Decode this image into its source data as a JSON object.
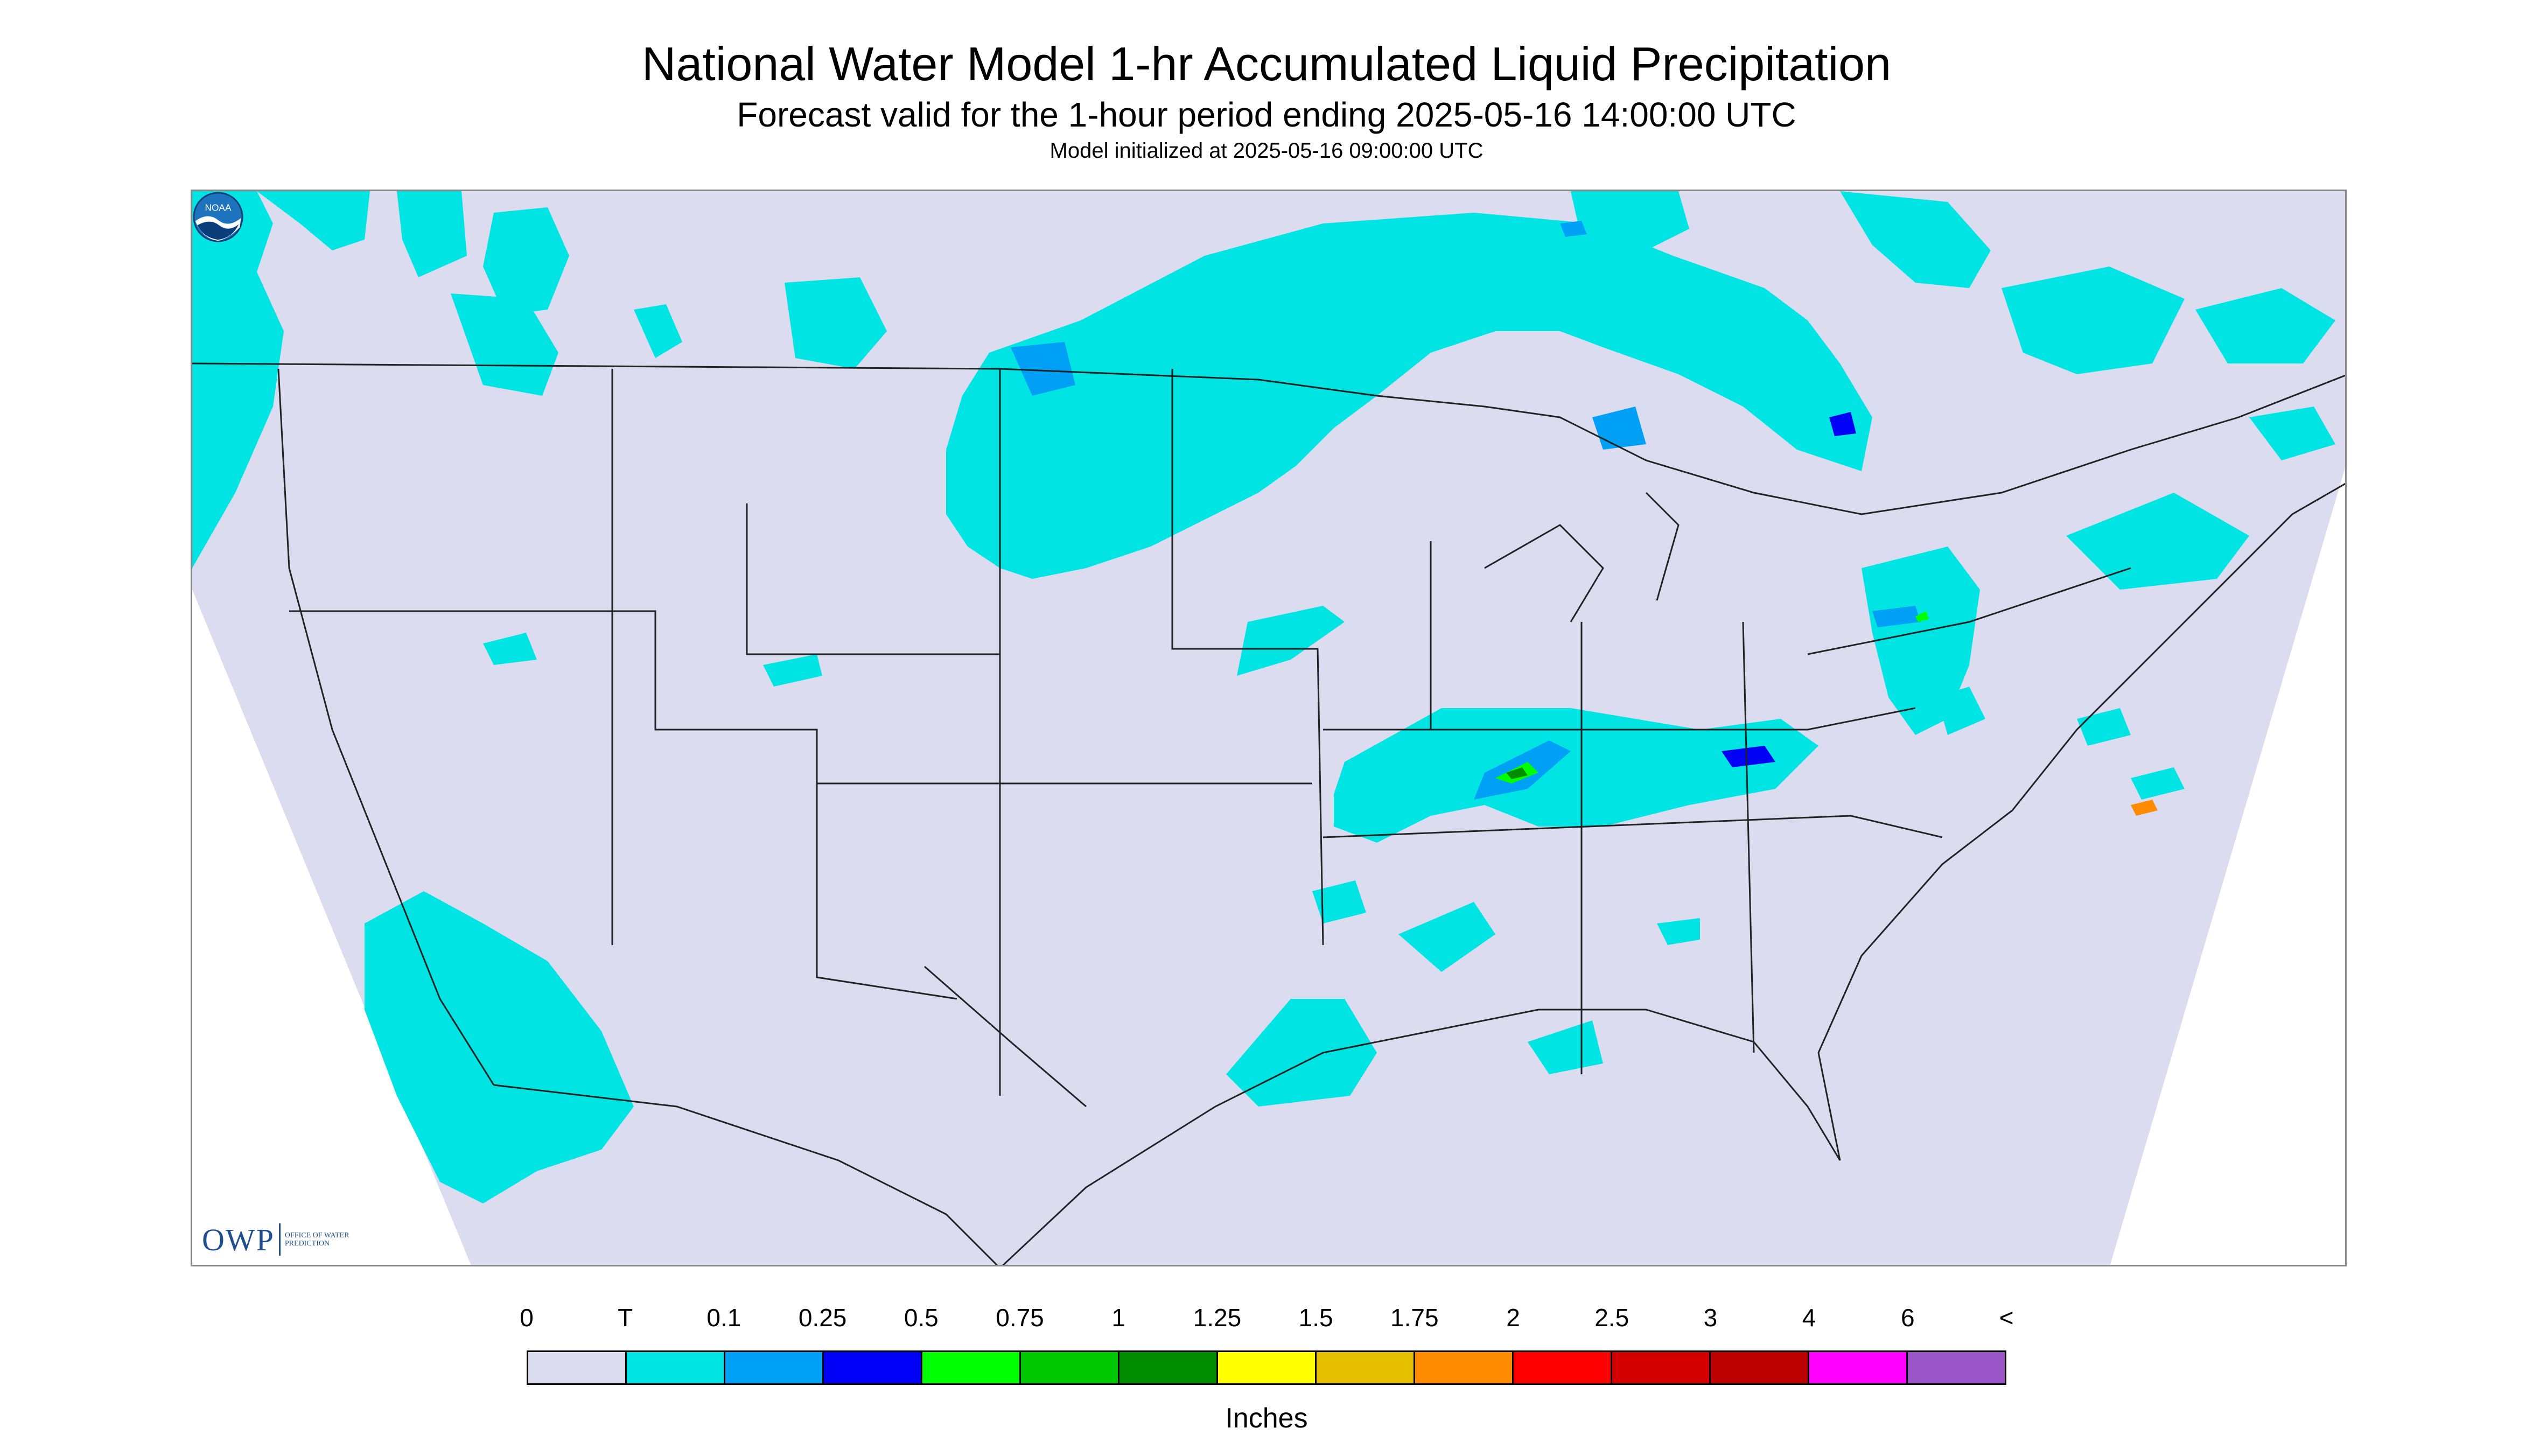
{
  "title": "National Water Model 1-hr Accumulated Liquid Precipitation",
  "subtitle": "Forecast valid for the 1-hour period ending 2025-05-16 14:00:00 UTC",
  "init_line": "Model initialized at 2025-05-16 09:00:00 UTC",
  "logos": {
    "owp_text": "OWP",
    "owp_subtext": "OFFICE OF WATER PREDICTION",
    "noaa_text": "NOAA"
  },
  "colors": {
    "no_data_region": "#ffffff",
    "domain_fill": "#dcdcf0",
    "boundary": "#222222"
  },
  "legend": {
    "labels": [
      "0",
      "T",
      "0.1",
      "0.25",
      "0.5",
      "0.75",
      "1",
      "1.25",
      "1.5",
      "1.75",
      "2",
      "2.5",
      "3",
      "4",
      "6",
      "<"
    ],
    "colors": [
      "#dcdcf0",
      "#00e4e4",
      "#00a0f6",
      "#0000f6",
      "#00ff00",
      "#00c800",
      "#008e00",
      "#ffff00",
      "#e6be00",
      "#ff8c00",
      "#ff0000",
      "#d40000",
      "#bc0000",
      "#ff00ff",
      "#9a55c9"
    ],
    "units": "Inches"
  }
}
